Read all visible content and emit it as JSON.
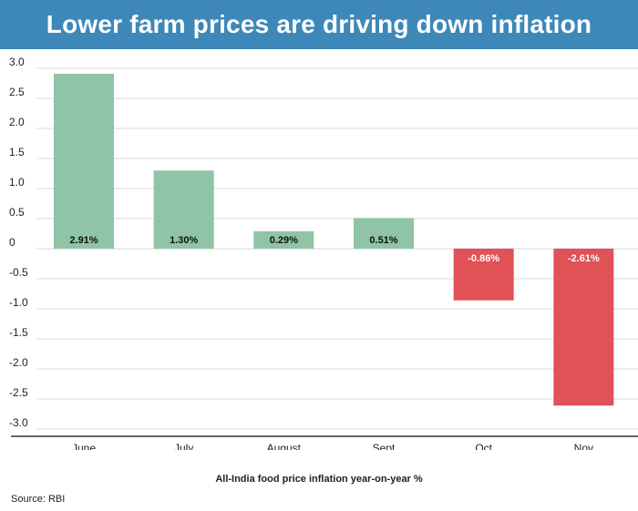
{
  "header": {
    "title": "Lower farm prices are driving down inflation"
  },
  "footer": {
    "source": "Source: RBI"
  },
  "colors": {
    "banner": "#3d88b8",
    "positive": "#8fc4a6",
    "negative": "#e05255",
    "grid": "#d9d9d9"
  },
  "chart_data": {
    "type": "bar",
    "title": "Lower farm prices are driving down inflation",
    "xlabel": "All-India food price inflation year-on-year %",
    "ylabel": "",
    "categories": [
      "June",
      "July",
      "August",
      "Sept",
      "Oct",
      "Nov"
    ],
    "values": [
      2.91,
      1.3,
      0.29,
      0.51,
      -0.86,
      -2.61
    ],
    "data_labels": [
      "2.91%",
      "1.30%",
      "0.29%",
      "0.51%",
      "-0.86%",
      "-2.61%"
    ],
    "ylim": [
      -3.0,
      3.0
    ],
    "yticks": [
      3.0,
      2.5,
      2.0,
      1.5,
      1.0,
      0.5,
      0,
      -0.5,
      -1.0,
      -1.5,
      -2.0,
      -2.5,
      -3.0
    ],
    "ytick_labels": [
      "3.0",
      "2.5",
      "2.0",
      "1.5",
      "1.0",
      "0.5",
      "0",
      "-0.5",
      "-1.0",
      "-1.5",
      "-2.0",
      "-2.5",
      "-3.0"
    ],
    "grid": true,
    "legend": "none"
  }
}
